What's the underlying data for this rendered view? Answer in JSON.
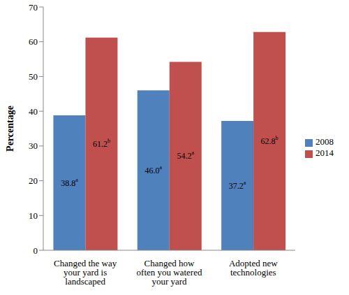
{
  "chart_data": {
    "type": "bar",
    "categories": [
      "Changed the way your yard is landscaped",
      "Changed how often you watered your yard",
      "Adopted new technologies"
    ],
    "series": [
      {
        "name": "2008",
        "color": "#4f81bd",
        "values": [
          38.8,
          46.0,
          37.2
        ],
        "value_labels": [
          "38.8a",
          "46.0a",
          "37.2a"
        ]
      },
      {
        "name": "2014",
        "color": "#c0504d",
        "values": [
          61.2,
          54.2,
          62.8
        ],
        "value_labels": [
          "61.2b",
          "54.2a",
          "62.8b"
        ]
      }
    ],
    "y_label": "Percentage",
    "ylim": [
      0,
      70
    ],
    "yticks": [
      0,
      10,
      20,
      30,
      40,
      50,
      60,
      70
    ],
    "grid": false,
    "legend": "right",
    "data_labels": true
  }
}
